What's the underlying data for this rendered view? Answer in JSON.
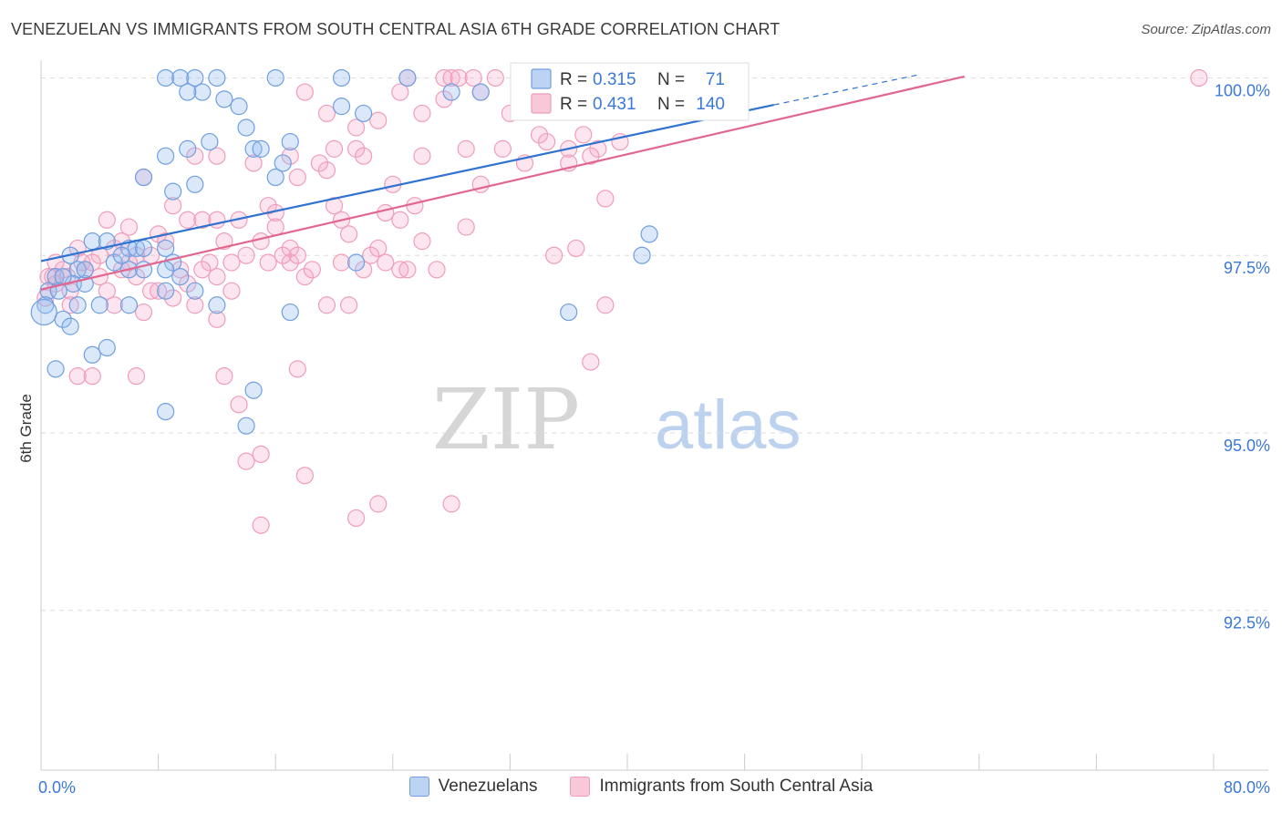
{
  "title": "VENEZUELAN VS IMMIGRANTS FROM SOUTH CENTRAL ASIA 6TH GRADE CORRELATION CHART",
  "source": "Source: ZipAtlas.com",
  "watermark": {
    "zip": "ZIP",
    "atlas": "atlas"
  },
  "chart_data": {
    "type": "scatter",
    "xlabel": "",
    "ylabel": "6th Grade",
    "xlim": [
      0,
      80
    ],
    "ylim": [
      90.25,
      100.25
    ],
    "x_tick_labels": [
      "0.0%",
      "80.0%"
    ],
    "y_ticks": [
      92.5,
      95.0,
      97.5,
      100.0
    ],
    "y_tick_labels": [
      "92.5%",
      "95.0%",
      "97.5%",
      "100.0%"
    ],
    "grid": true,
    "legend_position": "top-center",
    "series": [
      {
        "name": "Venezuelans",
        "color": "#6f9fe0",
        "line_color": "#2f72d0",
        "r_label": "R = ",
        "r_value": "0.315",
        "n_label": "N = ",
        "n_value": "71",
        "trend": {
          "x0": 0,
          "y0": 97.42,
          "x1": 50,
          "y1": 99.62,
          "dash_x1": 60,
          "dash_y1": 100.05
        },
        "points": [
          [
            8.5,
            100.0
          ],
          [
            9.5,
            100.0
          ],
          [
            10.5,
            100.0
          ],
          [
            12.0,
            100.0
          ],
          [
            16.0,
            100.0
          ],
          [
            20.5,
            100.0
          ],
          [
            25.0,
            100.0
          ],
          [
            11.0,
            99.8
          ],
          [
            10.0,
            99.8
          ],
          [
            12.5,
            99.7
          ],
          [
            28.0,
            99.8
          ],
          [
            20.5,
            99.6
          ],
          [
            13.5,
            99.6
          ],
          [
            14.0,
            99.3
          ],
          [
            11.5,
            99.1
          ],
          [
            17.0,
            99.1
          ],
          [
            14.5,
            99.0
          ],
          [
            15.0,
            99.0
          ],
          [
            10.0,
            99.0
          ],
          [
            8.5,
            98.9
          ],
          [
            16.5,
            98.8
          ],
          [
            7.0,
            98.6
          ],
          [
            10.5,
            98.5
          ],
          [
            16.0,
            98.6
          ],
          [
            9.0,
            98.4
          ],
          [
            3.5,
            97.7
          ],
          [
            4.5,
            97.7
          ],
          [
            6.0,
            97.6
          ],
          [
            6.5,
            97.6
          ],
          [
            7.0,
            97.6
          ],
          [
            8.5,
            97.6
          ],
          [
            2.0,
            97.5
          ],
          [
            5.0,
            97.4
          ],
          [
            9.0,
            97.4
          ],
          [
            2.5,
            97.3
          ],
          [
            6.0,
            97.3
          ],
          [
            7.0,
            97.3
          ],
          [
            8.5,
            97.3
          ],
          [
            2.2,
            97.1
          ],
          [
            3.0,
            97.1
          ],
          [
            1.0,
            97.2
          ],
          [
            1.5,
            97.2
          ],
          [
            0.5,
            97.0
          ],
          [
            1.2,
            97.0
          ],
          [
            0.3,
            96.8
          ],
          [
            2.5,
            96.8
          ],
          [
            4.0,
            96.8
          ],
          [
            6.0,
            96.8
          ],
          [
            8.5,
            97.0
          ],
          [
            10.5,
            97.0
          ],
          [
            12.0,
            96.8
          ],
          [
            1.5,
            96.6
          ],
          [
            2.0,
            96.5
          ],
          [
            17.0,
            96.7
          ],
          [
            4.5,
            96.2
          ],
          [
            3.5,
            96.1
          ],
          [
            1.0,
            95.9
          ],
          [
            8.5,
            95.3
          ],
          [
            14.0,
            95.1
          ],
          [
            14.5,
            95.6
          ],
          [
            21.5,
            97.4
          ],
          [
            36.0,
            96.7
          ],
          [
            41.0,
            97.5
          ],
          [
            41.5,
            97.8
          ],
          [
            36.0,
            99.6
          ],
          [
            30.0,
            99.8
          ],
          [
            22.0,
            99.5
          ],
          [
            0.2,
            96.7
          ],
          [
            3.0,
            97.3
          ],
          [
            5.5,
            97.5
          ],
          [
            9.5,
            97.2
          ]
        ]
      },
      {
        "name": "Immigrants from South Central Asia",
        "color": "#ef9dbb",
        "line_color": "#e2678f",
        "r_label": "R = ",
        "r_value": "0.431",
        "n_label": "N = ",
        "n_value": "140",
        "trend": {
          "x0": 0,
          "y0": 97.02,
          "x1": 63,
          "y1": 100.02
        },
        "points": [
          [
            25.0,
            100.0
          ],
          [
            27.5,
            100.0
          ],
          [
            28.0,
            100.0
          ],
          [
            28.5,
            100.0
          ],
          [
            29.5,
            100.0
          ],
          [
            31.0,
            100.0
          ],
          [
            40.0,
            100.0
          ],
          [
            33.0,
            100.0
          ],
          [
            35.0,
            100.0
          ],
          [
            40.5,
            100.0
          ],
          [
            79.0,
            100.0
          ],
          [
            18.0,
            99.8
          ],
          [
            24.5,
            99.8
          ],
          [
            27.5,
            99.7
          ],
          [
            30.0,
            99.8
          ],
          [
            19.5,
            99.5
          ],
          [
            26.0,
            99.5
          ],
          [
            32.0,
            99.5
          ],
          [
            23.0,
            99.4
          ],
          [
            21.5,
            99.3
          ],
          [
            34.0,
            99.2
          ],
          [
            37.0,
            99.2
          ],
          [
            39.5,
            99.1
          ],
          [
            20.0,
            99.0
          ],
          [
            21.5,
            99.0
          ],
          [
            29.0,
            99.0
          ],
          [
            31.5,
            99.0
          ],
          [
            38.0,
            99.0
          ],
          [
            10.5,
            98.9
          ],
          [
            12.0,
            98.9
          ],
          [
            17.0,
            98.9
          ],
          [
            19.0,
            98.8
          ],
          [
            22.0,
            98.9
          ],
          [
            26.0,
            98.9
          ],
          [
            36.0,
            98.8
          ],
          [
            14.5,
            98.8
          ],
          [
            17.5,
            98.6
          ],
          [
            19.5,
            98.7
          ],
          [
            24.0,
            98.5
          ],
          [
            7.0,
            98.6
          ],
          [
            20.0,
            98.2
          ],
          [
            15.5,
            98.2
          ],
          [
            16.0,
            98.1
          ],
          [
            23.5,
            98.1
          ],
          [
            25.5,
            98.2
          ],
          [
            38.5,
            98.3
          ],
          [
            9.0,
            98.2
          ],
          [
            10.0,
            98.0
          ],
          [
            11.0,
            98.0
          ],
          [
            12.0,
            98.0
          ],
          [
            13.5,
            98.0
          ],
          [
            16.0,
            97.9
          ],
          [
            20.5,
            98.0
          ],
          [
            24.5,
            98.0
          ],
          [
            29.0,
            97.9
          ],
          [
            4.5,
            98.0
          ],
          [
            5.5,
            97.7
          ],
          [
            8.0,
            97.8
          ],
          [
            8.5,
            97.7
          ],
          [
            12.5,
            97.7
          ],
          [
            15.0,
            97.7
          ],
          [
            17.0,
            97.6
          ],
          [
            21.0,
            97.8
          ],
          [
            23.0,
            97.6
          ],
          [
            26.0,
            97.7
          ],
          [
            35.0,
            97.5
          ],
          [
            36.5,
            97.6
          ],
          [
            2.5,
            97.6
          ],
          [
            4.0,
            97.5
          ],
          [
            6.5,
            97.5
          ],
          [
            7.5,
            97.5
          ],
          [
            11.5,
            97.4
          ],
          [
            13.0,
            97.4
          ],
          [
            14.0,
            97.5
          ],
          [
            15.5,
            97.4
          ],
          [
            17.0,
            97.4
          ],
          [
            17.5,
            97.5
          ],
          [
            20.5,
            97.4
          ],
          [
            22.5,
            97.5
          ],
          [
            23.5,
            97.4
          ],
          [
            24.5,
            97.3
          ],
          [
            1.5,
            97.3
          ],
          [
            3.0,
            97.3
          ],
          [
            4.0,
            97.2
          ],
          [
            5.5,
            97.3
          ],
          [
            6.5,
            97.2
          ],
          [
            9.5,
            97.3
          ],
          [
            11.0,
            97.3
          ],
          [
            12.0,
            97.2
          ],
          [
            18.0,
            97.2
          ],
          [
            0.5,
            97.2
          ],
          [
            1.0,
            97.1
          ],
          [
            2.0,
            97.0
          ],
          [
            4.5,
            97.0
          ],
          [
            7.5,
            97.0
          ],
          [
            9.0,
            96.9
          ],
          [
            0.3,
            96.9
          ],
          [
            2.0,
            96.8
          ],
          [
            5.0,
            96.8
          ],
          [
            7.0,
            96.7
          ],
          [
            10.5,
            96.8
          ],
          [
            19.5,
            96.8
          ],
          [
            21.0,
            96.8
          ],
          [
            12.0,
            96.6
          ],
          [
            38.5,
            96.8
          ],
          [
            37.5,
            96.0
          ],
          [
            2.5,
            95.8
          ],
          [
            3.5,
            95.8
          ],
          [
            6.5,
            95.8
          ],
          [
            12.5,
            95.8
          ],
          [
            17.5,
            95.9
          ],
          [
            13.5,
            95.4
          ],
          [
            14.0,
            94.6
          ],
          [
            15.0,
            94.7
          ],
          [
            18.0,
            94.4
          ],
          [
            23.0,
            94.0
          ],
          [
            21.5,
            93.8
          ],
          [
            28.0,
            94.0
          ],
          [
            15.0,
            93.7
          ],
          [
            1.0,
            97.4
          ],
          [
            3.5,
            97.4
          ],
          [
            6.0,
            97.4
          ],
          [
            8.0,
            97.0
          ],
          [
            10.0,
            97.1
          ],
          [
            13.0,
            97.0
          ],
          [
            16.5,
            97.5
          ],
          [
            18.5,
            97.3
          ],
          [
            22.0,
            97.3
          ],
          [
            25.0,
            97.3
          ],
          [
            27.0,
            97.3
          ],
          [
            30.0,
            98.5
          ],
          [
            33.0,
            98.8
          ],
          [
            34.5,
            99.1
          ],
          [
            36.0,
            99.0
          ],
          [
            37.5,
            98.9
          ],
          [
            0.8,
            97.2
          ],
          [
            1.8,
            97.2
          ],
          [
            2.8,
            97.4
          ],
          [
            5.0,
            97.6
          ],
          [
            6.0,
            97.9
          ]
        ]
      }
    ]
  }
}
